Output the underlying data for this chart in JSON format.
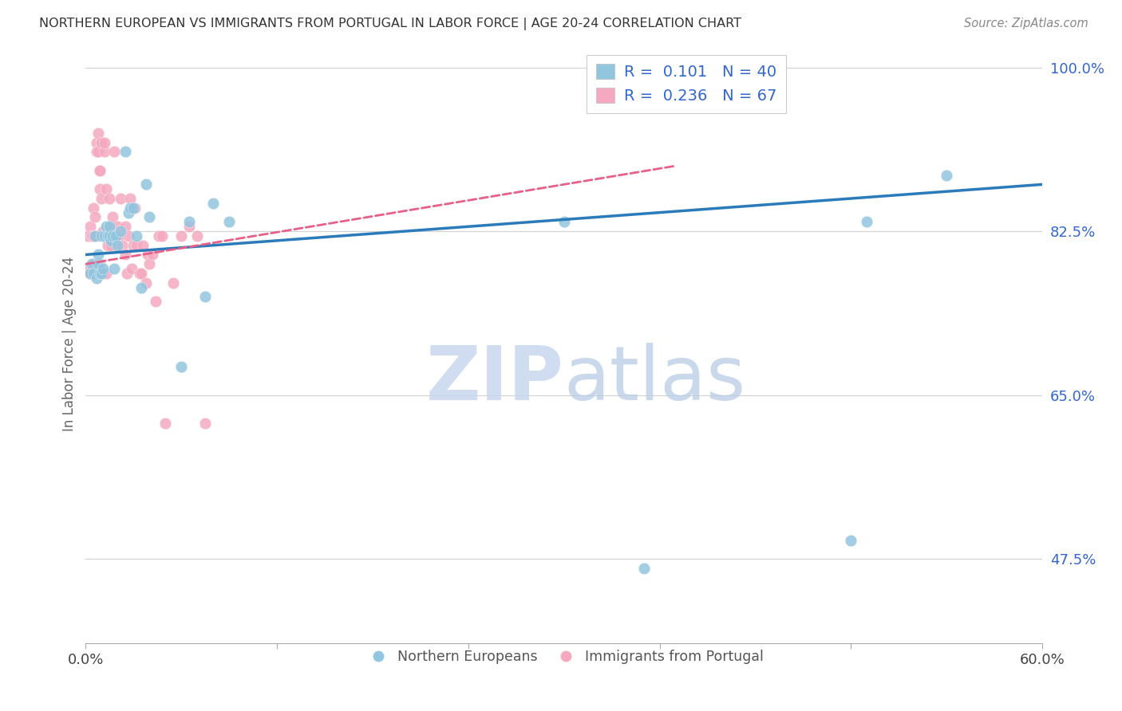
{
  "title": "NORTHERN EUROPEAN VS IMMIGRANTS FROM PORTUGAL IN LABOR FORCE | AGE 20-24 CORRELATION CHART",
  "source": "Source: ZipAtlas.com",
  "ylabel": "In Labor Force | Age 20-24",
  "ytick_labels": [
    "100.0%",
    "82.5%",
    "65.0%",
    "47.5%"
  ],
  "ytick_values": [
    1.0,
    0.825,
    0.65,
    0.475
  ],
  "xlim": [
    0.0,
    0.6
  ],
  "ylim": [
    0.385,
    1.025
  ],
  "watermark_zip": "ZIP",
  "watermark_atlas": "atlas",
  "blue_color": "#92c5de",
  "pink_color": "#f4a9c0",
  "blue_line_color": "#2b7bba",
  "pink_line_color": "#e8608a",
  "grid_color": "#d0d0d0",
  "bg_color": "#ffffff",
  "blue_scatter_x": [
    0.003,
    0.004,
    0.005,
    0.006,
    0.007,
    0.008,
    0.008,
    0.009,
    0.01,
    0.01,
    0.011,
    0.012,
    0.013,
    0.014,
    0.015,
    0.015,
    0.016,
    0.017,
    0.018,
    0.019,
    0.02,
    0.022,
    0.025,
    0.027,
    0.028,
    0.03,
    0.032,
    0.035,
    0.038,
    0.04,
    0.06,
    0.065,
    0.075,
    0.08,
    0.09,
    0.3,
    0.35,
    0.48,
    0.49,
    0.54
  ],
  "blue_scatter_y": [
    0.78,
    0.79,
    0.78,
    0.82,
    0.775,
    0.79,
    0.8,
    0.78,
    0.82,
    0.78,
    0.785,
    0.82,
    0.83,
    0.82,
    0.82,
    0.83,
    0.815,
    0.82,
    0.785,
    0.82,
    0.81,
    0.825,
    0.91,
    0.845,
    0.85,
    0.85,
    0.82,
    0.765,
    0.875,
    0.84,
    0.68,
    0.835,
    0.755,
    0.855,
    0.835,
    0.835,
    0.465,
    0.495,
    0.835,
    0.885
  ],
  "pink_scatter_x": [
    0.001,
    0.002,
    0.002,
    0.003,
    0.003,
    0.004,
    0.004,
    0.005,
    0.005,
    0.005,
    0.006,
    0.006,
    0.007,
    0.007,
    0.007,
    0.008,
    0.008,
    0.009,
    0.009,
    0.009,
    0.009,
    0.01,
    0.01,
    0.01,
    0.011,
    0.011,
    0.012,
    0.012,
    0.013,
    0.013,
    0.014,
    0.015,
    0.015,
    0.016,
    0.017,
    0.018,
    0.019,
    0.02,
    0.02,
    0.021,
    0.022,
    0.023,
    0.025,
    0.025,
    0.026,
    0.027,
    0.028,
    0.029,
    0.03,
    0.031,
    0.032,
    0.034,
    0.035,
    0.036,
    0.038,
    0.039,
    0.04,
    0.042,
    0.044,
    0.046,
    0.048,
    0.05,
    0.055,
    0.06,
    0.065,
    0.07,
    0.075
  ],
  "pink_scatter_y": [
    0.82,
    0.82,
    0.785,
    0.78,
    0.83,
    0.82,
    0.82,
    0.79,
    0.85,
    0.82,
    0.84,
    0.82,
    0.92,
    0.91,
    0.78,
    0.93,
    0.91,
    0.87,
    0.89,
    0.89,
    0.79,
    0.86,
    0.92,
    0.92,
    0.78,
    0.825,
    0.91,
    0.92,
    0.87,
    0.78,
    0.81,
    0.83,
    0.86,
    0.81,
    0.84,
    0.91,
    0.82,
    0.82,
    0.83,
    0.82,
    0.86,
    0.81,
    0.8,
    0.83,
    0.78,
    0.82,
    0.86,
    0.785,
    0.81,
    0.85,
    0.81,
    0.78,
    0.78,
    0.81,
    0.77,
    0.8,
    0.79,
    0.8,
    0.75,
    0.82,
    0.82,
    0.62,
    0.77,
    0.82,
    0.83,
    0.82,
    0.62
  ],
  "blue_line_x0": 0.0,
  "blue_line_x1": 0.6,
  "blue_line_y0": 0.8,
  "blue_line_y1": 0.875,
  "pink_line_x0": 0.0,
  "pink_line_x1": 0.3,
  "pink_line_y0": 0.79,
  "pink_line_y1": 0.875
}
